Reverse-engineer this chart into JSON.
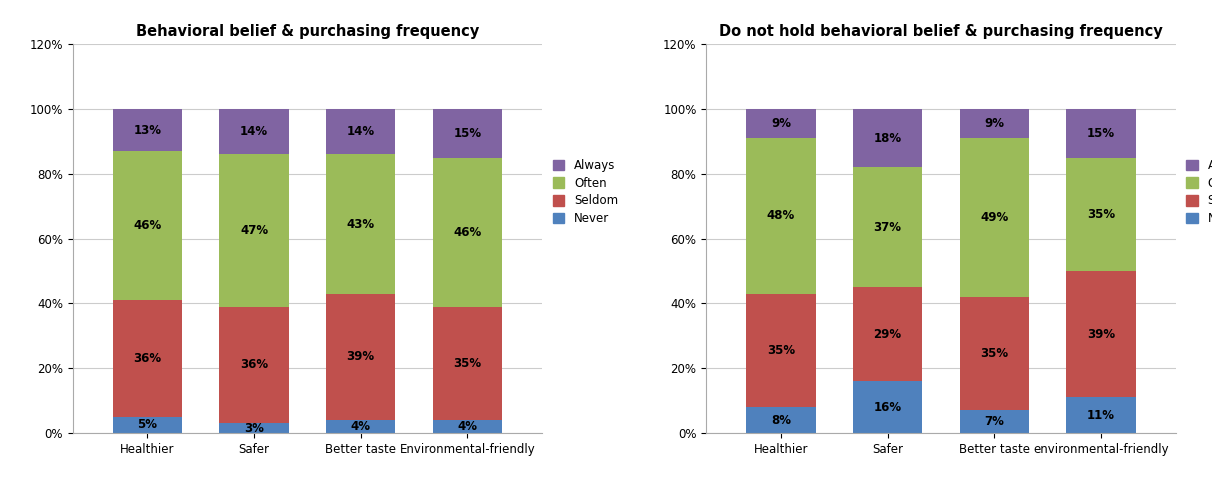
{
  "chart1": {
    "title": "Behavioral belief & purchasing frequency",
    "categories": [
      "Healthier",
      "Safer",
      "Better taste",
      "Environmental-friendly"
    ],
    "never": [
      5,
      3,
      4,
      4
    ],
    "seldom": [
      36,
      36,
      39,
      35
    ],
    "often": [
      46,
      47,
      43,
      46
    ],
    "always": [
      13,
      14,
      14,
      15
    ]
  },
  "chart2": {
    "title": "Do not hold behavioral belief & purchasing frequency",
    "categories": [
      "Healthier",
      "Safer",
      "Better taste",
      "environmental-friendly"
    ],
    "never": [
      8,
      16,
      7,
      11
    ],
    "seldom": [
      35,
      29,
      35,
      39
    ],
    "often": [
      48,
      37,
      49,
      35
    ],
    "always": [
      9,
      18,
      9,
      15
    ]
  },
  "colors": {
    "never": "#4F81BD",
    "seldom": "#C0504D",
    "often": "#9BBB59",
    "always": "#8064A2"
  },
  "ylim": [
    0,
    1.2
  ],
  "yticks": [
    0,
    0.2,
    0.4,
    0.6,
    0.8,
    1.0,
    1.2
  ],
  "ytick_labels": [
    "0%",
    "20%",
    "40%",
    "60%",
    "80%",
    "100%",
    "120%"
  ],
  "bar_width": 0.65,
  "background_color": "#FFFFFF",
  "text_fontsize": 8.5,
  "title_fontsize": 10.5
}
